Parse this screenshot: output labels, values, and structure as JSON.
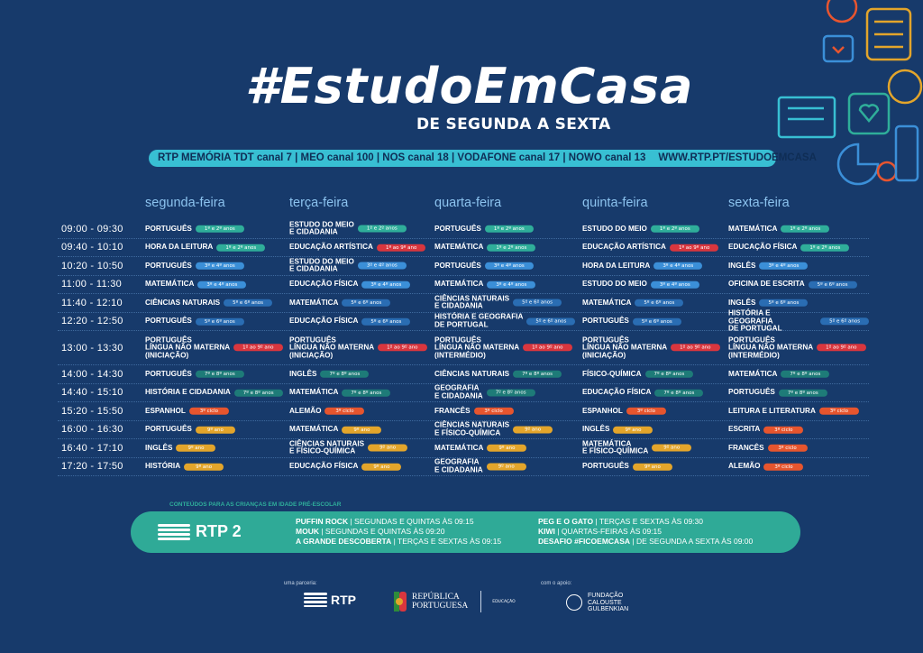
{
  "header": {
    "title": "#EstudoEmCasa",
    "subtitle": "DE SEGUNDA A SEXTA"
  },
  "channels": {
    "text": "RTP MEMÓRIA  TDT canal 7 | MEO canal 100 | NOS canal 18 | VODAFONE canal 17 | NOWO canal 13",
    "url": "WWW.RTP.PT/ESTUDOEMCASA"
  },
  "days": [
    "segunda-feira",
    "terça-feira",
    "quarta-feira",
    "quinta-feira",
    "sexta-feira"
  ],
  "badge_colors": {
    "1º e 2º anos": "#2fae9a",
    "3º e 4º anos": "#3b8fd8",
    "5º e 6º anos": "#2a6db3",
    "7º e 8º anos": "#1e7b78",
    "1º ao 9º ano": "#d9363e",
    "3º ciclo": "#e6552e",
    "9º ano": "#e3a52b"
  },
  "schedule": [
    {
      "time": "09:00 - 09:30",
      "cells": [
        [
          "PORTUGUÊS",
          "1º e 2º anos"
        ],
        [
          "ESTUDO DO MEIO\nE CIDADANIA",
          "1º e 2º anos"
        ],
        [
          "PORTUGUÊS",
          "1º e 2º anos"
        ],
        [
          "ESTUDO DO MEIO",
          "1º e 2º anos"
        ],
        [
          "MATEMÁTICA",
          "1º e 2º anos"
        ]
      ]
    },
    {
      "time": "09:40 - 10:10",
      "cells": [
        [
          "HORA DA LEITURA",
          "1º e 2º anos"
        ],
        [
          "EDUCAÇÃO ARTÍSTICA",
          "1º ao 9º ano"
        ],
        [
          "MATEMÁTICA",
          "1º e 2º anos"
        ],
        [
          "EDUCAÇÃO ARTÍSTICA",
          "1º ao 9º ano"
        ],
        [
          "EDUCAÇÃO FÍSICA",
          "1º e 2º anos"
        ]
      ]
    },
    {
      "time": "10:20 - 10:50",
      "cells": [
        [
          "PORTUGUÊS",
          "3º e 4º anos"
        ],
        [
          "ESTUDO DO MEIO\nE CIDADANIA",
          "3º e 4º anos"
        ],
        [
          "PORTUGUÊS",
          "3º e 4º anos"
        ],
        [
          "HORA DA LEITURA",
          "3º e 4º anos"
        ],
        [
          "INGLÊS",
          "3º e 4º anos"
        ]
      ]
    },
    {
      "time": "11:00 - 11:30",
      "cells": [
        [
          "MATEMÁTICA",
          "3º e 4º anos"
        ],
        [
          "EDUCAÇÃO FÍSICA",
          "3º e 4º anos"
        ],
        [
          "MATEMÁTICA",
          "3º e 4º anos"
        ],
        [
          "ESTUDO DO MEIO",
          "3º e 4º anos"
        ],
        [
          "OFICINA DE ESCRITA",
          "5º e 6º anos"
        ]
      ]
    },
    {
      "time": "11:40 - 12:10",
      "cells": [
        [
          "CIÊNCIAS NATURAIS",
          "5º e 6º anos"
        ],
        [
          "MATEMÁTICA",
          "5º e 6º anos"
        ],
        [
          "CIÊNCIAS NATURAIS\nE CIDADANIA",
          "5º e 6º anos"
        ],
        [
          "MATEMÁTICA",
          "5º e 6º anos"
        ],
        [
          "INGLÊS",
          "5º e 6º anos"
        ]
      ]
    },
    {
      "time": "12:20 - 12:50",
      "cells": [
        [
          "PORTUGUÊS",
          "5º e 6º anos"
        ],
        [
          "EDUCAÇÃO FÍSICA",
          "5º e 6º anos"
        ],
        [
          "HISTÓRIA E GEOGRAFIA\nDE PORTUGAL",
          "5º e 6º anos"
        ],
        [
          "PORTUGUÊS",
          "5º e 6º anos"
        ],
        [
          "HISTÓRIA E GEOGRAFIA\nDE PORTUGAL",
          "5º e 6º anos"
        ]
      ]
    },
    {
      "time": "13:00 - 13:30",
      "cells": [
        [
          "PORTUGUÊS\nLÍNGUA NÃO MATERNA\n(INICIAÇÃO)",
          "1º ao 9º ano"
        ],
        [
          "PORTUGUÊS\nLÍNGUA NÃO MATERNA\n(INICIAÇÃO)",
          "1º ao 9º ano"
        ],
        [
          "PORTUGUÊS\nLÍNGUA NÃO MATERNA\n(INTERMÉDIO)",
          "1º ao 9º ano"
        ],
        [
          "PORTUGUÊS\nLÍNGUA NÃO MATERNA\n(INICIAÇÃO)",
          "1º ao 9º ano"
        ],
        [
          "PORTUGUÊS\nLÍNGUA NÃO MATERNA\n(INTERMÉDIO)",
          "1º ao 9º ano"
        ]
      ]
    },
    {
      "time": "14:00 - 14:30",
      "cells": [
        [
          "PORTUGUÊS",
          "7º e 8º anos"
        ],
        [
          "INGLÊS",
          "7º e 8º anos"
        ],
        [
          "CIÊNCIAS NATURAIS",
          "7º e 8º anos"
        ],
        [
          "FÍSICO-QUÍMICA",
          "7º e 8º anos"
        ],
        [
          "MATEMÁTICA",
          "7º e 8º anos"
        ]
      ]
    },
    {
      "time": "14:40 - 15:10",
      "cells": [
        [
          "HISTÓRIA E CIDADANIA",
          "7º e 8º anos"
        ],
        [
          "MATEMÁTICA",
          "7º e 8º anos"
        ],
        [
          "GEOGRAFIA\nE CIDADANIA",
          "7º e 8º anos"
        ],
        [
          "EDUCAÇÃO FÍSICA",
          "7º e 8º anos"
        ],
        [
          "PORTUGUÊS",
          "7º e 8º anos"
        ]
      ]
    },
    {
      "time": "15:20 - 15:50",
      "cells": [
        [
          "ESPANHOL",
          "3º ciclo"
        ],
        [
          "ALEMÃO",
          "3º ciclo"
        ],
        [
          "FRANCÊS",
          "3º ciclo"
        ],
        [
          "ESPANHOL",
          "3º ciclo"
        ],
        [
          "LEITURA E LITERATURA",
          "3º ciclo"
        ]
      ]
    },
    {
      "time": "16:00 - 16:30",
      "cells": [
        [
          "PORTUGUÊS",
          "9º ano"
        ],
        [
          "MATEMÁTICA",
          "9º ano"
        ],
        [
          "CIÊNCIAS NATURAIS\nE FÍSICO-QUÍMICA",
          "9º ano"
        ],
        [
          "INGLÊS",
          "9º ano"
        ],
        [
          "ESCRITA",
          "3º ciclo"
        ]
      ]
    },
    {
      "time": "16:40 - 17:10",
      "cells": [
        [
          "INGLÊS",
          "9º ano"
        ],
        [
          "CIÊNCIAS NATURAIS\nE FÍSICO-QUÍMICA",
          "9º ano"
        ],
        [
          "MATEMÁTICA",
          "9º ano"
        ],
        [
          "MATEMÁTICA\nE FÍSICO-QUÍMICA",
          "9º ano"
        ],
        [
          "FRANCÊS",
          "3º ciclo"
        ]
      ]
    },
    {
      "time": "17:20 - 17:50",
      "cells": [
        [
          "HISTÓRIA",
          "9º ano"
        ],
        [
          "EDUCAÇÃO FÍSICA",
          "9º ano"
        ],
        [
          "GEOGRAFIA\nE CIDADANIA",
          "9º ano"
        ],
        [
          "PORTUGUÊS",
          "9º ano"
        ],
        [
          "ALEMÃO",
          "3º ciclo"
        ]
      ]
    }
  ],
  "preschool": {
    "label": "CONTEÚDOS PARA AS CRIANÇAS EM IDADE PRÉ-ESCOLAR",
    "logo": "RTP 2",
    "col1": [
      {
        "name": "PUFFIN ROCK",
        "when": " | SEGUNDAS E QUINTAS ÀS 09:15"
      },
      {
        "name": "MOUK",
        "when": " | SEGUNDAS E QUINTAS ÀS 09:20"
      },
      {
        "name": "A GRANDE DESCOBERTA",
        "when": " | TERÇAS E SEXTAS ÀS 09:15"
      }
    ],
    "col2": [
      {
        "name": "PEG E O GATO",
        "when": " | TERÇAS E SEXTAS ÀS 09:30"
      },
      {
        "name": "KIWI",
        "when": " | QUARTAS-FEIRAS ÀS 09:15"
      },
      {
        "name": "DESAFIO #FICOEMCASA",
        "when": " | DE SEGUNDA A SEXTA ÀS 09:00"
      }
    ]
  },
  "footer": {
    "partner_label": "uma parceria:",
    "rtp_logo": "RTP",
    "republica_line1": "REPÚBLICA",
    "republica_line2": "PORTUGUESA",
    "educacao": "EDUCAÇÃO",
    "support_label": "com o apoio:",
    "gulbenkian_line1": "FUNDAÇÃO",
    "gulbenkian_line2": "CALOUSTE",
    "gulbenkian_line3": "GULBENKIAN"
  }
}
